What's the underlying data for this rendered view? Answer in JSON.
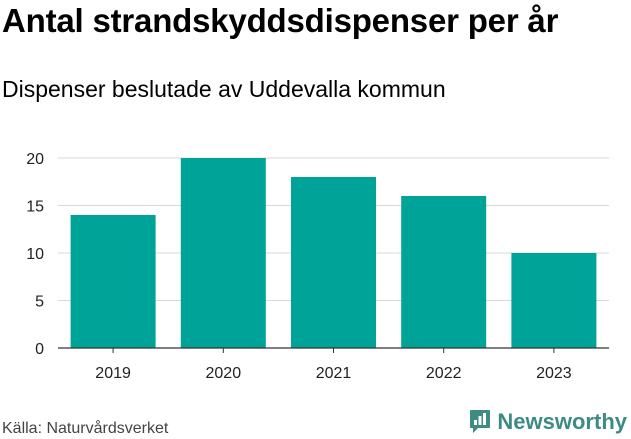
{
  "header": {
    "title": "Antal strandskyddsdispenser per år",
    "subtitle": "Dispenser beslutade av Uddevalla kommun"
  },
  "footer": {
    "source": "Källa: Naturvårdsverket",
    "brand": "Newsworthy",
    "brand_icon": "newsworthy-logo-icon"
  },
  "colors": {
    "bar": "#00a398",
    "grid": "#d9d9d9",
    "axis": "#333333",
    "brand": "#3d8b85"
  },
  "chart_data": {
    "type": "bar",
    "title": "Antal strandskyddsdispenser per år",
    "subtitle": "Dispenser beslutade av Uddevalla kommun",
    "categories": [
      "2019",
      "2020",
      "2021",
      "2022",
      "2023"
    ],
    "values": [
      14,
      20,
      18,
      16,
      10
    ],
    "xlabel": "",
    "ylabel": "",
    "ylim": [
      0,
      20
    ],
    "yticks": [
      0,
      5,
      10,
      15,
      20
    ],
    "grid": true,
    "legend": "none"
  }
}
